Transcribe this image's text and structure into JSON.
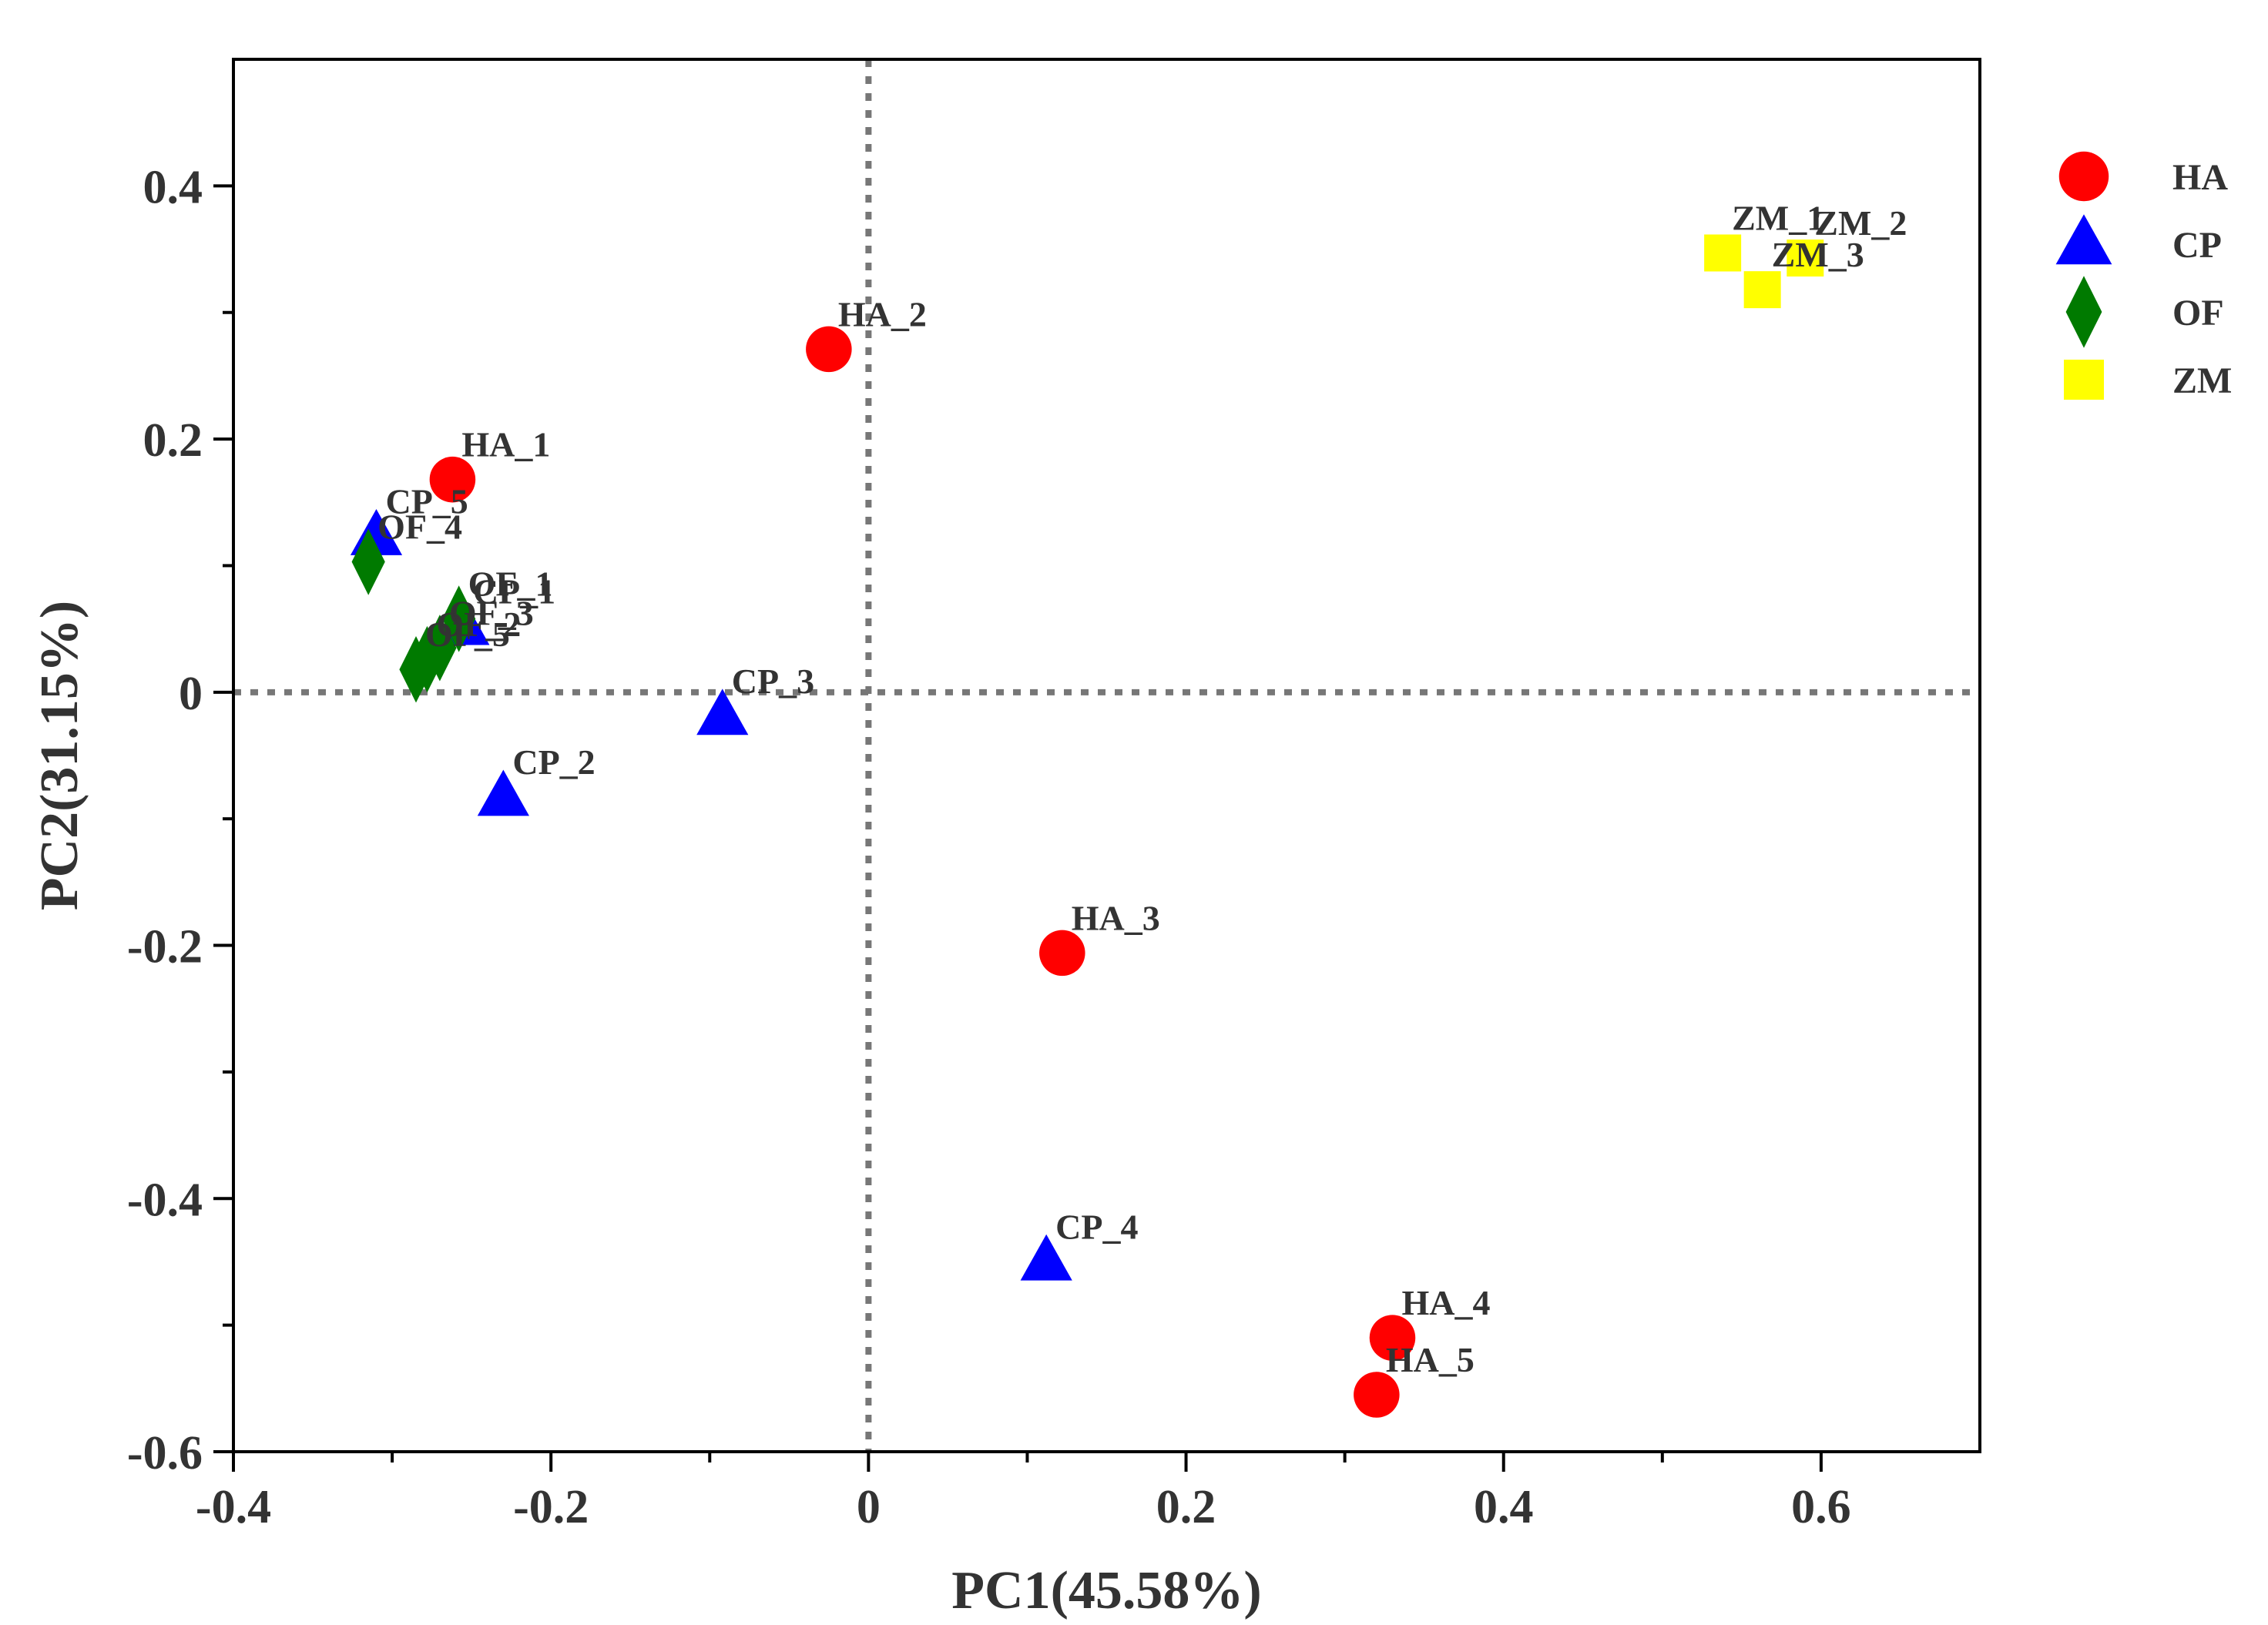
{
  "chart_data": {
    "type": "scatter",
    "title": "",
    "xlabel": "PC1(45.58%)",
    "ylabel": "PC2(31.15%)",
    "xlim": [
      -0.4,
      0.7
    ],
    "ylim": [
      -0.6,
      0.5
    ],
    "xticks": [
      -0.4,
      -0.2,
      0,
      0.2,
      0.4,
      0.6
    ],
    "xtick_labels": [
      "-0.4",
      "-0.2",
      "0",
      "0.2",
      "0.4",
      "0.6"
    ],
    "yticks": [
      -0.6,
      -0.4,
      -0.2,
      0,
      0.2,
      0.4
    ],
    "ytick_labels": [
      "-0.6",
      "-0.4",
      "-0.2",
      "0",
      "0.2",
      "0.4"
    ],
    "reference_lines": {
      "x": 0,
      "y": 0,
      "style": "dotted"
    },
    "legend_position": "right",
    "series": [
      {
        "name": "HA",
        "marker": "circle",
        "color": "#ff0000",
        "points": [
          {
            "label": "HA_1",
            "x": -0.262,
            "y": 0.168
          },
          {
            "label": "HA_2",
            "x": -0.025,
            "y": 0.271
          },
          {
            "label": "HA_3",
            "x": 0.122,
            "y": -0.206
          },
          {
            "label": "HA_4",
            "x": 0.33,
            "y": -0.51
          },
          {
            "label": "HA_5",
            "x": 0.32,
            "y": -0.555
          }
        ]
      },
      {
        "name": "CP",
        "marker": "triangle",
        "color": "#0000ff",
        "points": [
          {
            "label": "CP_2",
            "x": -0.23,
            "y": -0.083
          },
          {
            "label": "CP_3",
            "x": -0.092,
            "y": -0.019
          },
          {
            "label": "CP_4",
            "x": 0.112,
            "y": -0.45
          },
          {
            "label": "CP_5",
            "x": -0.31,
            "y": 0.123
          },
          {
            "label": "CP_1",
            "x": -0.255,
            "y": 0.052
          }
        ]
      },
      {
        "name": "OF",
        "marker": "diamond",
        "color": "#007a00",
        "points": [
          {
            "label": "OF_4",
            "x": -0.315,
            "y": 0.103
          },
          {
            "label": "OF_1",
            "x": -0.258,
            "y": 0.058
          },
          {
            "label": "OF_3",
            "x": -0.27,
            "y": 0.035
          },
          {
            "label": "OF_2",
            "x": -0.278,
            "y": 0.026
          },
          {
            "label": "OF_5",
            "x": -0.285,
            "y": 0.018
          }
        ]
      },
      {
        "name": "ZM",
        "marker": "square",
        "color": "#ffff00",
        "points": [
          {
            "label": "ZM_1",
            "x": 0.538,
            "y": 0.347
          },
          {
            "label": "ZM_2",
            "x": 0.59,
            "y": 0.343
          },
          {
            "label": "ZM_3",
            "x": 0.563,
            "y": 0.318
          }
        ]
      }
    ]
  }
}
